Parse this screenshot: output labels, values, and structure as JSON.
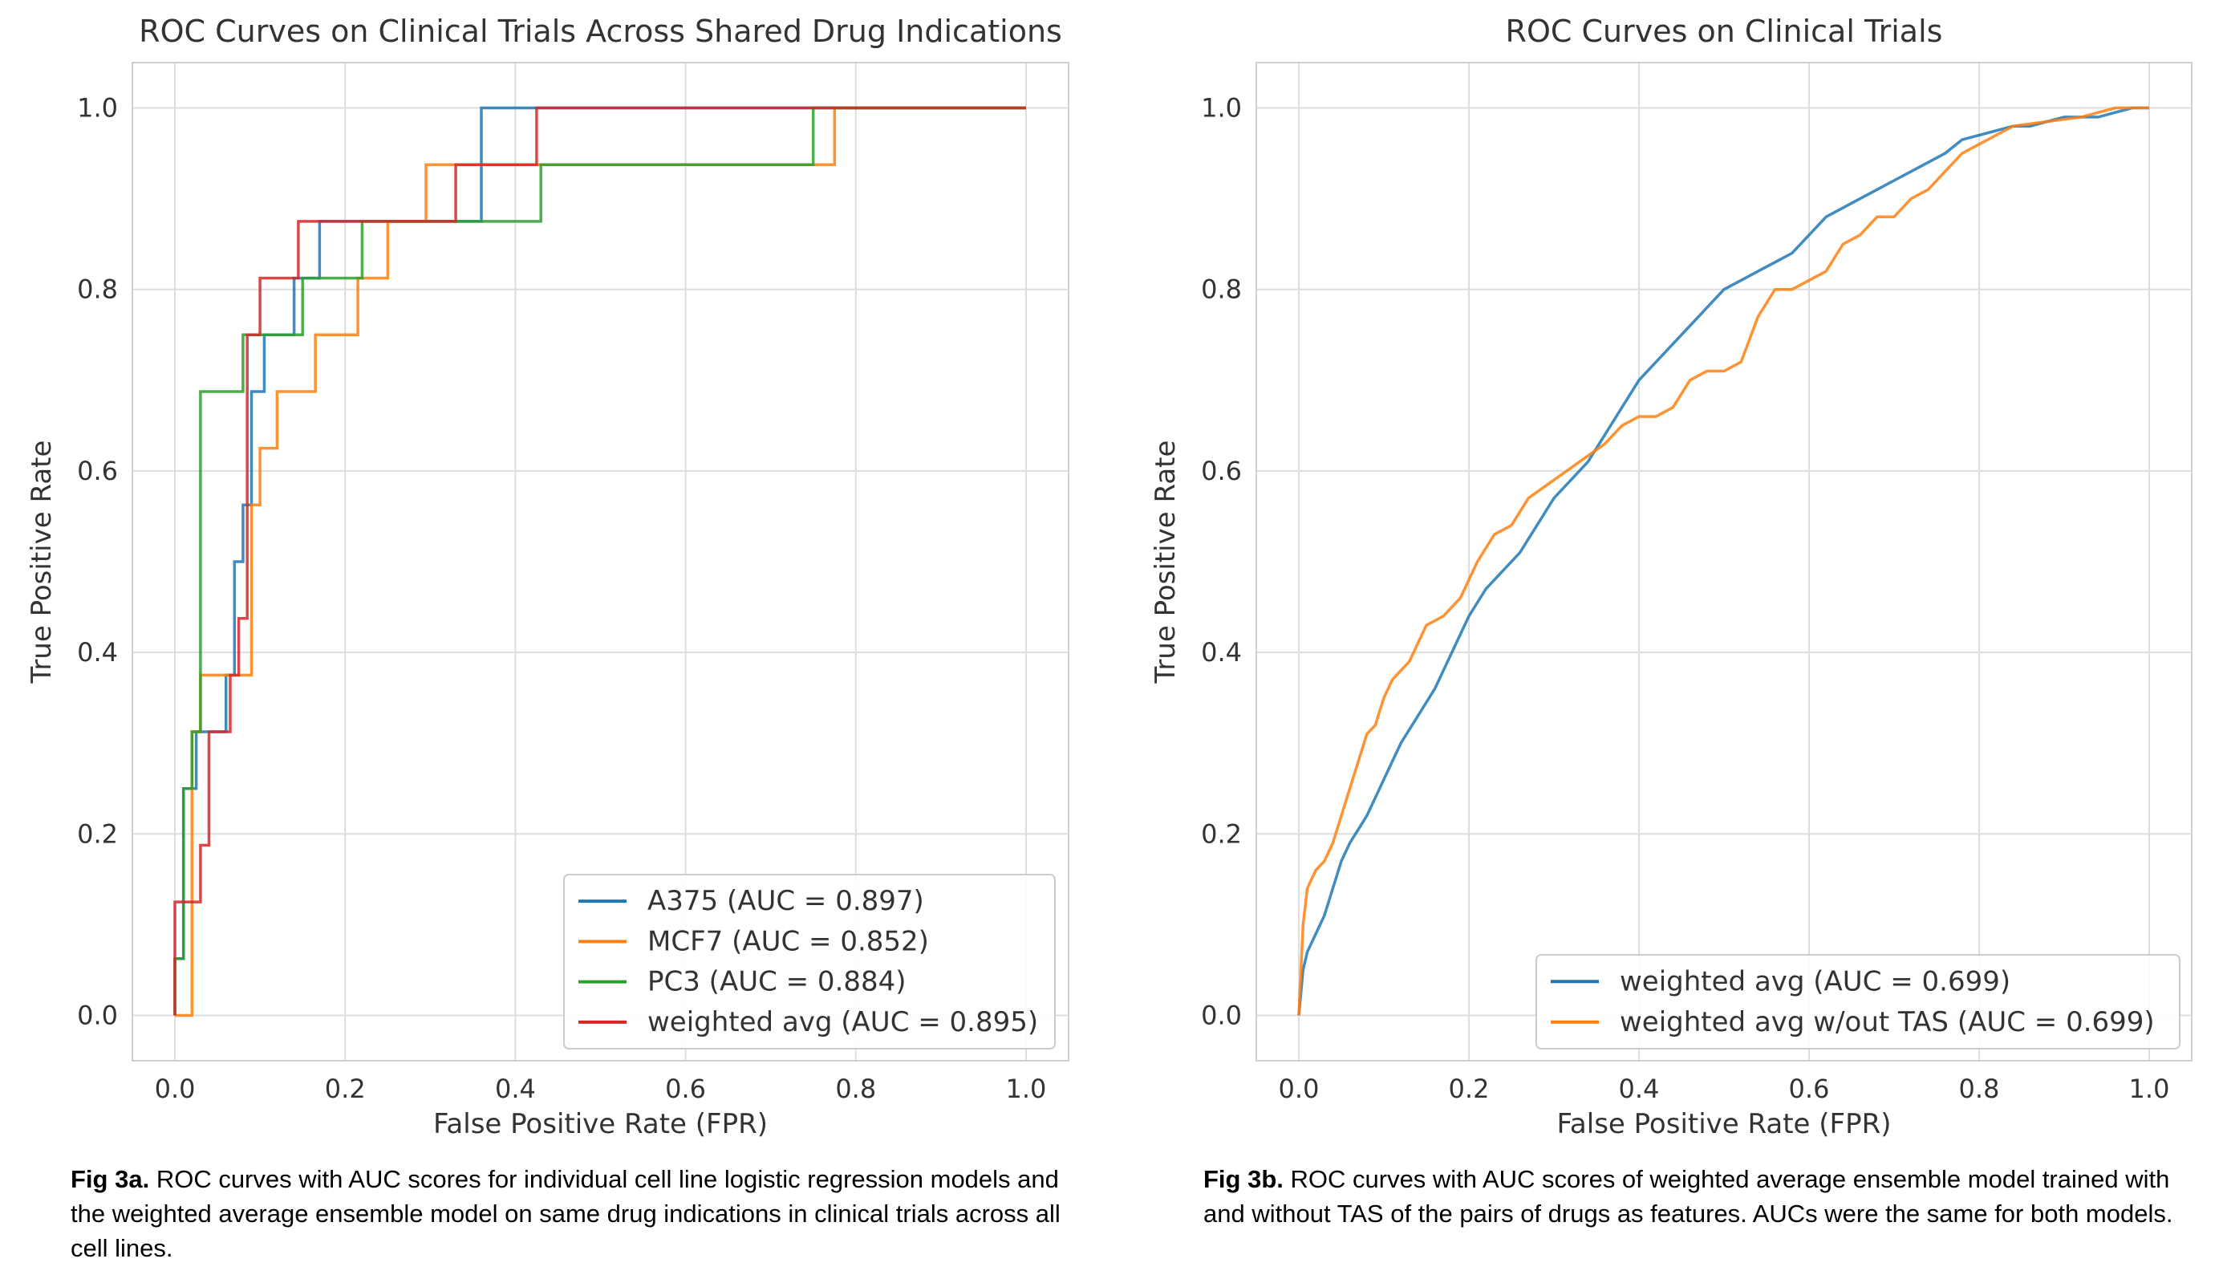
{
  "chart_data": [
    {
      "type": "line",
      "title": "ROC Curves on Clinical Trials Across Shared Drug Indications",
      "xlabel": "False Positive Rate (FPR)",
      "ylabel": "True Positive Rate",
      "xlim": [
        -0.05,
        1.05
      ],
      "ylim": [
        -0.05,
        1.05
      ],
      "xticks": [
        "0.0",
        "0.2",
        "0.4",
        "0.6",
        "0.8",
        "1.0"
      ],
      "yticks": [
        "0.0",
        "0.2",
        "0.4",
        "0.6",
        "0.8",
        "1.0"
      ],
      "grid": true,
      "legend_position": "lower-right",
      "series": [
        {
          "name": "A375 (AUC = 0.897)",
          "color": "#1f77b4",
          "x": [
            0,
            0,
            0.01,
            0.01,
            0.017,
            0.017,
            0.025,
            0.025,
            0.03,
            0.03,
            0.06,
            0.06,
            0.07,
            0.07,
            0.08,
            0.08,
            0.09,
            0.09,
            0.105,
            0.105,
            0.14,
            0.14,
            0.17,
            0.17,
            0.36,
            0.36,
            1.0
          ],
          "y": [
            0,
            0.0625,
            0.0625,
            0.25,
            0.25,
            0.25,
            0.25,
            0.3125,
            0.3125,
            0.3125,
            0.3125,
            0.375,
            0.375,
            0.5,
            0.5,
            0.5625,
            0.5625,
            0.6875,
            0.6875,
            0.75,
            0.75,
            0.8125,
            0.8125,
            0.875,
            0.875,
            1.0,
            1.0
          ]
        },
        {
          "name": "MCF7 (AUC = 0.852)",
          "color": "#ff7f0e",
          "x": [
            0,
            0,
            0.02,
            0.02,
            0.03,
            0.03,
            0.06,
            0.06,
            0.09,
            0.09,
            0.1,
            0.1,
            0.12,
            0.12,
            0.165,
            0.165,
            0.215,
            0.215,
            0.25,
            0.25,
            0.295,
            0.295,
            0.36,
            0.36,
            0.76,
            0.76,
            0.775,
            0.775,
            1.0
          ],
          "y": [
            0,
            0,
            0,
            0.3125,
            0.3125,
            0.375,
            0.375,
            0.375,
            0.375,
            0.5625,
            0.5625,
            0.625,
            0.625,
            0.6875,
            0.6875,
            0.75,
            0.75,
            0.8125,
            0.8125,
            0.875,
            0.875,
            0.9375,
            0.9375,
            0.9375,
            0.9375,
            0.9375,
            0.9375,
            1.0,
            1.0
          ]
        },
        {
          "name": "PC3 (AUC = 0.884)",
          "color": "#2ca02c",
          "x": [
            0,
            0,
            0.01,
            0.01,
            0.02,
            0.02,
            0.03,
            0.03,
            0.08,
            0.08,
            0.14,
            0.14,
            0.15,
            0.15,
            0.22,
            0.22,
            0.33,
            0.33,
            0.43,
            0.43,
            0.75,
            0.75,
            1.0
          ],
          "y": [
            0,
            0.0625,
            0.0625,
            0.25,
            0.25,
            0.3125,
            0.3125,
            0.6875,
            0.6875,
            0.75,
            0.75,
            0.75,
            0.75,
            0.8125,
            0.8125,
            0.875,
            0.875,
            0.875,
            0.875,
            0.9375,
            0.9375,
            1.0,
            1.0
          ]
        },
        {
          "name": "weighted avg (AUC = 0.895)",
          "color": "#d62728",
          "x": [
            0,
            0,
            0.03,
            0.03,
            0.04,
            0.04,
            0.065,
            0.065,
            0.075,
            0.075,
            0.085,
            0.085,
            0.1,
            0.1,
            0.145,
            0.145,
            0.33,
            0.33,
            0.425,
            0.425,
            1.0
          ],
          "y": [
            0,
            0.125,
            0.125,
            0.1875,
            0.1875,
            0.3125,
            0.3125,
            0.375,
            0.375,
            0.4375,
            0.4375,
            0.75,
            0.75,
            0.8125,
            0.8125,
            0.875,
            0.875,
            0.9375,
            0.9375,
            1.0,
            1.0
          ]
        }
      ]
    },
    {
      "type": "line",
      "title": "ROC Curves on Clinical Trials",
      "xlabel": "False Positive Rate (FPR)",
      "ylabel": "True Positive Rate",
      "xlim": [
        -0.05,
        1.05
      ],
      "ylim": [
        -0.05,
        1.05
      ],
      "xticks": [
        "0.0",
        "0.2",
        "0.4",
        "0.6",
        "0.8",
        "1.0"
      ],
      "yticks": [
        "0.0",
        "0.2",
        "0.4",
        "0.6",
        "0.8",
        "1.0"
      ],
      "grid": true,
      "legend_position": "lower-right",
      "series": [
        {
          "name": "weighted avg (AUC = 0.699)",
          "color": "#1f77b4",
          "x": [
            0,
            0.005,
            0.01,
            0.02,
            0.03,
            0.04,
            0.05,
            0.06,
            0.08,
            0.1,
            0.12,
            0.14,
            0.16,
            0.18,
            0.2,
            0.22,
            0.24,
            0.26,
            0.28,
            0.3,
            0.32,
            0.34,
            0.36,
            0.38,
            0.4,
            0.42,
            0.44,
            0.46,
            0.48,
            0.5,
            0.52,
            0.54,
            0.56,
            0.58,
            0.6,
            0.62,
            0.64,
            0.66,
            0.68,
            0.7,
            0.72,
            0.74,
            0.76,
            0.78,
            0.8,
            0.82,
            0.84,
            0.86,
            0.88,
            0.9,
            0.92,
            0.94,
            0.96,
            0.98,
            1.0
          ],
          "y": [
            0,
            0.05,
            0.07,
            0.09,
            0.11,
            0.14,
            0.17,
            0.19,
            0.22,
            0.26,
            0.3,
            0.33,
            0.36,
            0.4,
            0.44,
            0.47,
            0.49,
            0.51,
            0.54,
            0.57,
            0.59,
            0.61,
            0.64,
            0.67,
            0.7,
            0.72,
            0.74,
            0.76,
            0.78,
            0.8,
            0.81,
            0.82,
            0.83,
            0.84,
            0.86,
            0.88,
            0.89,
            0.9,
            0.91,
            0.92,
            0.93,
            0.94,
            0.95,
            0.965,
            0.97,
            0.975,
            0.98,
            0.98,
            0.985,
            0.99,
            0.99,
            0.99,
            0.995,
            1.0,
            1.0
          ]
        },
        {
          "name": "weighted avg w/out TAS (AUC = 0.699)",
          "color": "#ff7f0e",
          "x": [
            0,
            0.005,
            0.01,
            0.02,
            0.03,
            0.04,
            0.05,
            0.06,
            0.07,
            0.08,
            0.09,
            0.1,
            0.11,
            0.12,
            0.13,
            0.14,
            0.15,
            0.17,
            0.19,
            0.21,
            0.23,
            0.25,
            0.27,
            0.3,
            0.33,
            0.36,
            0.38,
            0.4,
            0.42,
            0.44,
            0.46,
            0.48,
            0.5,
            0.52,
            0.54,
            0.56,
            0.58,
            0.6,
            0.62,
            0.64,
            0.66,
            0.68,
            0.7,
            0.72,
            0.74,
            0.76,
            0.78,
            0.8,
            0.82,
            0.84,
            0.88,
            0.92,
            0.96,
            1.0
          ],
          "y": [
            0,
            0.1,
            0.14,
            0.16,
            0.17,
            0.19,
            0.22,
            0.25,
            0.28,
            0.31,
            0.32,
            0.35,
            0.37,
            0.38,
            0.39,
            0.41,
            0.43,
            0.44,
            0.46,
            0.5,
            0.53,
            0.54,
            0.57,
            0.59,
            0.61,
            0.63,
            0.65,
            0.66,
            0.66,
            0.67,
            0.7,
            0.71,
            0.71,
            0.72,
            0.77,
            0.8,
            0.8,
            0.81,
            0.82,
            0.85,
            0.86,
            0.88,
            0.88,
            0.9,
            0.91,
            0.93,
            0.95,
            0.96,
            0.97,
            0.98,
            0.985,
            0.99,
            1.0,
            1.0
          ]
        }
      ]
    }
  ],
  "captions": [
    {
      "label": "Fig 3a.",
      "text": " ROC curves with AUC scores for individual cell line logistic regression models and the weighted average ensemble model on same drug indications in clinical trials across all cell lines."
    },
    {
      "label": "Fig 3b.",
      "text": " ROC curves with AUC scores of weighted average ensemble model trained with and without TAS of the pairs of drugs as features. AUCs were the same for both models."
    }
  ]
}
